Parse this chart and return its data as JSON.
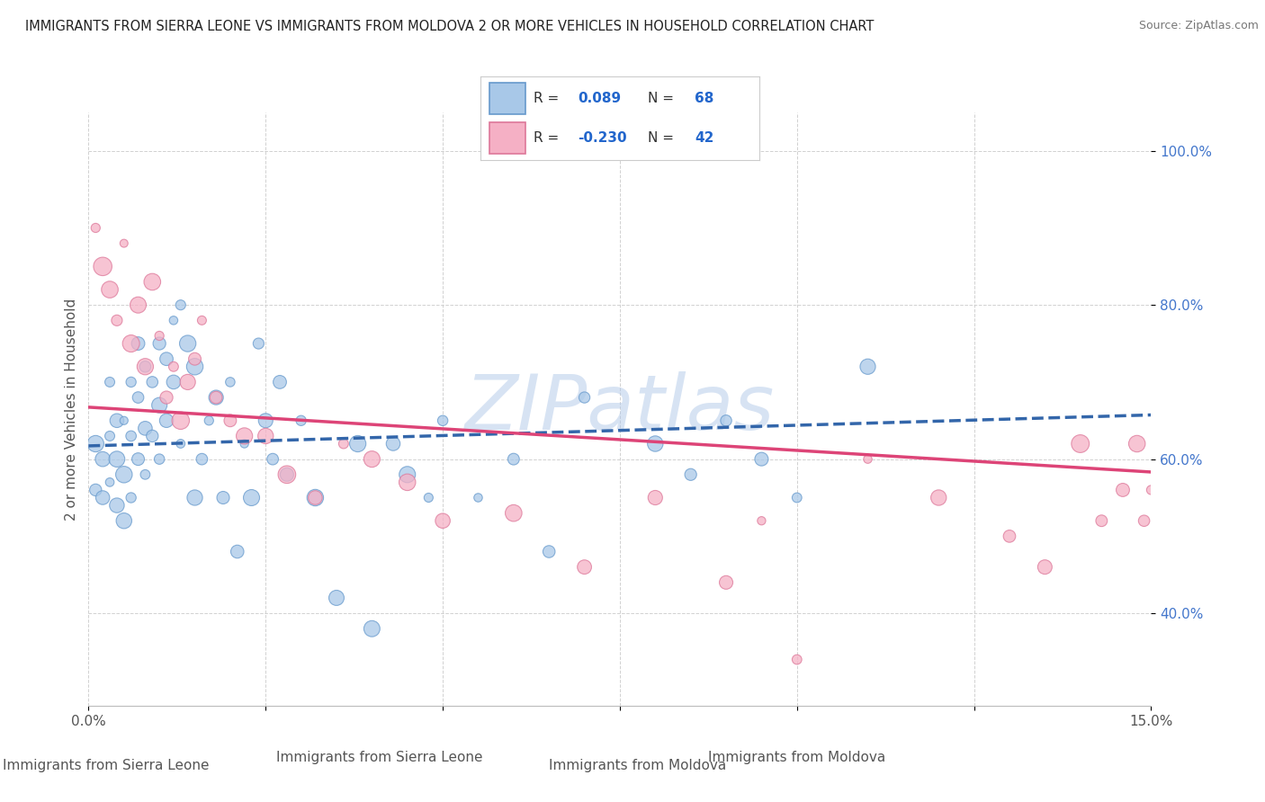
{
  "title": "IMMIGRANTS FROM SIERRA LEONE VS IMMIGRANTS FROM MOLDOVA 2 OR MORE VEHICLES IN HOUSEHOLD CORRELATION CHART",
  "source": "Source: ZipAtlas.com",
  "xlabel_blue": "Immigrants from Sierra Leone",
  "xlabel_pink": "Immigrants from Moldova",
  "ylabel": "2 or more Vehicles in Household",
  "watermark": "ZIPatlas",
  "xlim": [
    0.0,
    0.15
  ],
  "ylim": [
    0.28,
    1.05
  ],
  "ytick_vals": [
    0.4,
    0.6,
    0.8,
    1.0
  ],
  "ytick_labels": [
    "40.0%",
    "60.0%",
    "80.0%",
    "100.0%"
  ],
  "xtick_vals": [
    0.0,
    0.025,
    0.05,
    0.075,
    0.1,
    0.125,
    0.15
  ],
  "xtick_labels": [
    "0.0%",
    "",
    "",
    "",
    "",
    "",
    "15.0%"
  ],
  "blue_fill": "#a8c8e8",
  "blue_edge": "#6699cc",
  "pink_fill": "#f5b0c5",
  "pink_edge": "#dd7799",
  "blue_line_color": "#3366aa",
  "pink_line_color": "#dd4477",
  "ytick_color": "#4477cc",
  "grid_color": "#cccccc",
  "title_color": "#222222",
  "source_color": "#777777",
  "ylabel_color": "#555555",
  "xlabel_color": "#555555",
  "R_blue": 0.089,
  "R_pink": -0.23,
  "N_blue": 68,
  "N_pink": 42,
  "sierra_leone_x": [
    0.001,
    0.001,
    0.002,
    0.002,
    0.003,
    0.003,
    0.003,
    0.004,
    0.004,
    0.004,
    0.005,
    0.005,
    0.005,
    0.006,
    0.006,
    0.006,
    0.007,
    0.007,
    0.007,
    0.008,
    0.008,
    0.008,
    0.009,
    0.009,
    0.01,
    0.01,
    0.01,
    0.011,
    0.011,
    0.012,
    0.012,
    0.013,
    0.013,
    0.014,
    0.015,
    0.015,
    0.016,
    0.017,
    0.018,
    0.019,
    0.02,
    0.021,
    0.022,
    0.023,
    0.024,
    0.025,
    0.026,
    0.027,
    0.028,
    0.03,
    0.032,
    0.035,
    0.038,
    0.04,
    0.043,
    0.045,
    0.048,
    0.05,
    0.055,
    0.06,
    0.065,
    0.07,
    0.08,
    0.085,
    0.09,
    0.095,
    0.1,
    0.11
  ],
  "sierra_leone_y": [
    0.56,
    0.62,
    0.6,
    0.55,
    0.63,
    0.7,
    0.57,
    0.6,
    0.65,
    0.54,
    0.65,
    0.58,
    0.52,
    0.63,
    0.7,
    0.55,
    0.68,
    0.75,
    0.6,
    0.72,
    0.64,
    0.58,
    0.7,
    0.63,
    0.75,
    0.67,
    0.6,
    0.73,
    0.65,
    0.78,
    0.7,
    0.8,
    0.62,
    0.75,
    0.72,
    0.55,
    0.6,
    0.65,
    0.68,
    0.55,
    0.7,
    0.48,
    0.62,
    0.55,
    0.75,
    0.65,
    0.6,
    0.7,
    0.58,
    0.65,
    0.55,
    0.42,
    0.62,
    0.38,
    0.62,
    0.58,
    0.55,
    0.65,
    0.55,
    0.6,
    0.48,
    0.68,
    0.62,
    0.58,
    0.65,
    0.6,
    0.55,
    0.72
  ],
  "moldova_x": [
    0.001,
    0.002,
    0.003,
    0.004,
    0.005,
    0.006,
    0.007,
    0.008,
    0.009,
    0.01,
    0.011,
    0.012,
    0.013,
    0.014,
    0.015,
    0.016,
    0.018,
    0.02,
    0.022,
    0.025,
    0.028,
    0.032,
    0.036,
    0.04,
    0.045,
    0.05,
    0.06,
    0.07,
    0.08,
    0.09,
    0.095,
    0.1,
    0.11,
    0.12,
    0.13,
    0.135,
    0.14,
    0.143,
    0.146,
    0.148,
    0.149,
    0.15
  ],
  "moldova_y": [
    0.9,
    0.85,
    0.82,
    0.78,
    0.88,
    0.75,
    0.8,
    0.72,
    0.83,
    0.76,
    0.68,
    0.72,
    0.65,
    0.7,
    0.73,
    0.78,
    0.68,
    0.65,
    0.63,
    0.63,
    0.58,
    0.55,
    0.62,
    0.6,
    0.57,
    0.52,
    0.53,
    0.46,
    0.55,
    0.44,
    0.52,
    0.34,
    0.6,
    0.55,
    0.5,
    0.46,
    0.62,
    0.52,
    0.56,
    0.62,
    0.52,
    0.56
  ]
}
